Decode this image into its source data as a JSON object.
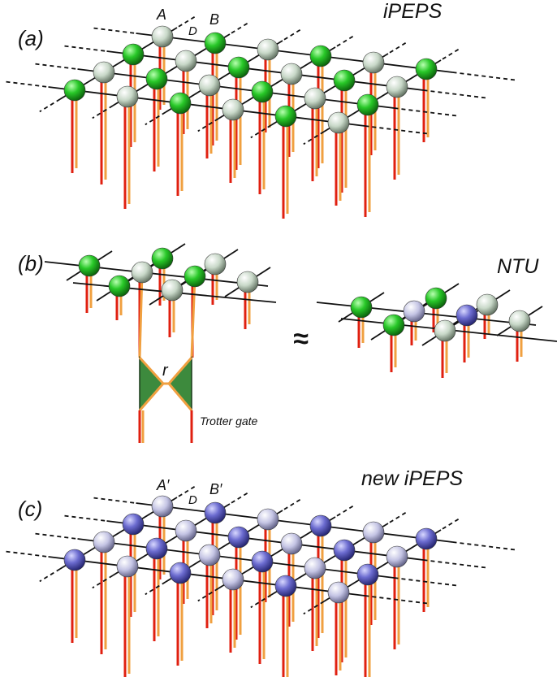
{
  "panel_a": {
    "label": "(a)",
    "title": "iPEPS",
    "site_a": "A",
    "bond": "D",
    "site_b": "B"
  },
  "panel_b": {
    "label": "(b)",
    "approx": "≈",
    "method": "NTU",
    "bond": "r",
    "gate": "Trotter gate"
  },
  "panel_c": {
    "label": "(c)",
    "title": "new iPEPS",
    "site_a": "A′",
    "bond": "D",
    "site_b": "B′"
  }
}
